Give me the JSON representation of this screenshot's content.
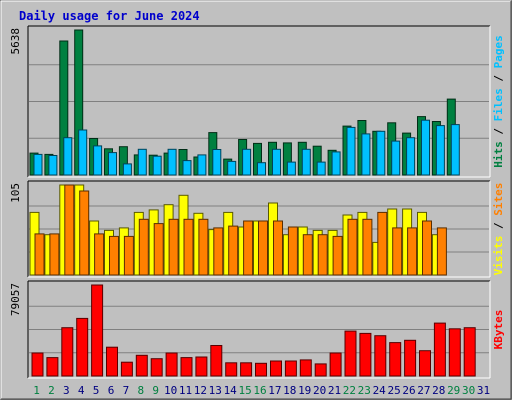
{
  "title": "Daily usage for June 2024",
  "colors": {
    "background": "#c0c0c0",
    "title_text": "#0000cc",
    "hits": "#008040",
    "files": "#00c0ff",
    "pages": "#00c0ff",
    "visits": "#ffff00",
    "sites": "#ff8000",
    "kbytes": "#ff0000",
    "weekend_label": "#008040",
    "weekday_label": "#000080",
    "separator": "#000000"
  },
  "days": [
    "1",
    "2",
    "3",
    "4",
    "5",
    "6",
    "7",
    "8",
    "9",
    "10",
    "11",
    "12",
    "13",
    "14",
    "15",
    "16",
    "17",
    "18",
    "19",
    "20",
    "21",
    "22",
    "23",
    "24",
    "25",
    "26",
    "27",
    "28",
    "29",
    "30",
    "31"
  ],
  "weekend_days": [
    "1",
    "2",
    "8",
    "9",
    "15",
    "16",
    "22",
    "23",
    "29",
    "30"
  ],
  "chart_data": [
    {
      "type": "bar",
      "name": "hits-files-pages",
      "ylim": [
        0,
        5638
      ],
      "max_label": "5638",
      "ylabel_parts": [
        {
          "text": "Hits",
          "color_key": "hits"
        },
        {
          "text": " / ",
          "color_key": "separator"
        },
        {
          "text": "Files",
          "color_key": "files"
        },
        {
          "text": " / ",
          "color_key": "separator"
        },
        {
          "text": "Pages",
          "color_key": "pages"
        }
      ],
      "series": [
        {
          "name": "Hits",
          "color_key": "hits",
          "values": [
            850,
            800,
            5210,
            5638,
            1420,
            1020,
            1100,
            780,
            770,
            850,
            990,
            700,
            1650,
            620,
            1380,
            1230,
            1270,
            1250,
            1270,
            1120,
            960,
            1900,
            2120,
            1700,
            2030,
            1630,
            2270,
            2080,
            2950,
            0,
            0
          ]
        },
        {
          "name": "Files",
          "color_key": "files",
          "values": [
            800,
            760,
            1450,
            1750,
            1130,
            870,
            430,
            1000,
            730,
            1000,
            560,
            780,
            990,
            530,
            1000,
            480,
            1000,
            500,
            1000,
            500,
            900,
            1850,
            1600,
            1700,
            1320,
            1450,
            2130,
            1920,
            1960,
            0,
            0
          ]
        },
        {
          "name": "Pages",
          "color_key": "pages",
          "values": [
            790,
            720,
            1430,
            1650,
            1100,
            850,
            450,
            980,
            720,
            970,
            580,
            770,
            950,
            480,
            1000,
            500,
            950,
            500,
            980,
            500,
            880,
            1800,
            1550,
            1680,
            1300,
            1420,
            2100,
            1900,
            1950,
            0,
            0
          ]
        }
      ]
    },
    {
      "type": "bar",
      "name": "visits-sites",
      "ylim": [
        0,
        105
      ],
      "max_label": "105",
      "ylabel_parts": [
        {
          "text": "Visits",
          "color_key": "visits"
        },
        {
          "text": " / ",
          "color_key": "separator"
        },
        {
          "text": "Sites",
          "color_key": "sites"
        }
      ],
      "series": [
        {
          "name": "Visits",
          "color_key": "visits",
          "values": [
            73,
            47,
            105,
            105,
            63,
            52,
            55,
            73,
            76,
            82,
            93,
            72,
            53,
            73,
            56,
            63,
            84,
            47,
            56,
            52,
            52,
            70,
            73,
            38,
            77,
            77,
            73,
            47,
            0,
            0,
            0
          ]
        },
        {
          "name": "Sites",
          "color_key": "sites",
          "values": [
            48,
            48,
            105,
            98,
            48,
            45,
            45,
            65,
            60,
            65,
            65,
            65,
            55,
            57,
            63,
            63,
            63,
            56,
            47,
            47,
            45,
            65,
            65,
            73,
            55,
            55,
            63,
            55,
            0,
            0,
            0
          ]
        }
      ]
    },
    {
      "type": "bar",
      "name": "kbytes",
      "ylim": [
        0,
        79057
      ],
      "max_label": "79057",
      "ylabel_parts": [
        {
          "text": "KBytes",
          "color_key": "kbytes"
        }
      ],
      "series": [
        {
          "name": "KBytes",
          "color_key": "kbytes",
          "values": [
            20000,
            16000,
            42000,
            50000,
            79057,
            25000,
            12000,
            18000,
            15000,
            20000,
            16000,
            16500,
            26500,
            11500,
            11500,
            11000,
            13000,
            13000,
            14000,
            10500,
            20000,
            39000,
            37000,
            35000,
            29000,
            31000,
            22000,
            46000,
            41000,
            42000,
            0
          ]
        }
      ]
    }
  ]
}
